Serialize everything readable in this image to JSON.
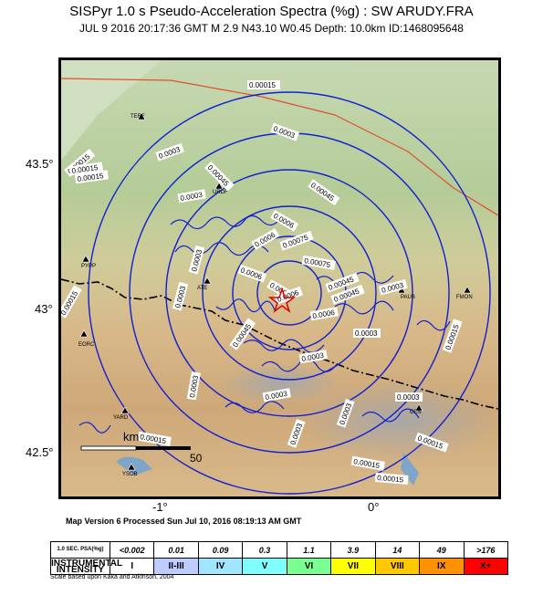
{
  "header": {
    "title": "SISPyr 1.0 s Pseudo-Acceleration Spectra (%g) : SW ARUDY.FRA",
    "subtitle": "JUL 9 2016 20:17:36  GMT    M 2.9    N43.10 W0.45    Depth: 10.0km    ID:1468095648"
  },
  "map": {
    "lat_labels": [
      "43.5°",
      "43°",
      "42.5°"
    ],
    "lon_labels": [
      "-1°",
      "0°"
    ],
    "cities": [
      "TERF",
      "URDF",
      "PYPP",
      "ATE",
      "PAUB",
      "FMON",
      "EORC",
      "YARD",
      "CEN",
      "YSOB"
    ],
    "contour_labels": [
      "0.00015",
      "0.0003",
      "0.00015",
      "0.00015",
      "0.00015",
      "0.0003",
      "0.00045",
      "0.0003",
      "0.00045",
      "0.0006",
      "0.0006",
      "0.00075",
      "0.00075",
      "0.0003",
      "0.00045",
      "0.00045",
      "0.0003",
      "0.0003",
      "0.00015",
      "0.00045",
      "0.0006",
      "0.0003",
      "0.0003",
      "0.0003",
      "0.0003",
      "0.0003",
      "0.0003",
      "0.0003",
      "0.00015",
      "0.00015",
      "0.00015",
      "0.00015",
      "0.00015",
      "0.0009",
      "0.0006",
      "0.0006"
    ],
    "scale_bar": {
      "unit": "km",
      "distance": "50"
    },
    "colors": {
      "contour": "#1020d0",
      "epicenter": "#e00000",
      "fault_line": "#e05030"
    }
  },
  "footer": {
    "processed": "Map Version 6 Processed Sun Jul 10, 2016 08:19:13 AM GMT",
    "psa_label": "1.0 SEC. PSA(%g)",
    "psa_values": [
      "<0.002",
      "0.01",
      "0.09",
      "0.3",
      "1.1",
      "3.9",
      "14",
      "49",
      ">176"
    ],
    "intensity_label": "INSTRUMENTAL INTENSITY",
    "intensities": [
      "I",
      "II-III",
      "IV",
      "V",
      "VI",
      "VII",
      "VIII",
      "IX",
      "X+"
    ],
    "intensity_colors": [
      "#ffffff",
      "#bfccff",
      "#a0e6ff",
      "#80ffff",
      "#7aff93",
      "#ffff00",
      "#ffc800",
      "#ff9100",
      "#ff0000"
    ],
    "scale_note": "Scale based upon Kaka and Atkinson, 2004"
  }
}
